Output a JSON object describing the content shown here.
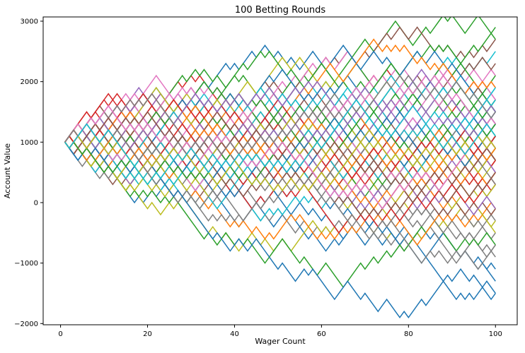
{
  "chart_data": {
    "type": "line",
    "title": "100  Betting Rounds",
    "xlabel": "Wager Count",
    "ylabel": "Account Value",
    "xlim": [
      -4,
      105
    ],
    "ylim": [
      -2020,
      3070
    ],
    "xticks": [
      0,
      20,
      40,
      60,
      80,
      100
    ],
    "yticks": [
      -2000,
      -1000,
      0,
      1000,
      2000,
      3000
    ],
    "grid": false,
    "legend": "none",
    "start_value": 1000,
    "step": 100,
    "x_start": 1,
    "x_end": 100,
    "series_count": 100,
    "series_colors": [
      "#1f77b4",
      "#ff7f0e",
      "#2ca02c",
      "#d62728",
      "#9467bd",
      "#8c564b",
      "#e377c2",
      "#7f7f7f",
      "#bcbd22",
      "#17becf"
    ],
    "series_endpoints": [
      -1400,
      1000,
      2800,
      1600,
      1000,
      2600,
      2000,
      -1000,
      -600,
      2400,
      -1200,
      -200,
      2600,
      1200,
      400,
      2200,
      1800,
      -800,
      600,
      1800,
      -1600,
      400,
      2000,
      600,
      1200,
      1400,
      1600,
      -600,
      800,
      1600,
      1400,
      600,
      -800,
      200,
      1000,
      800,
      1200,
      -400,
      1200,
      1000,
      1200,
      -200,
      1600,
      600,
      800,
      1000,
      400,
      200,
      -400,
      1400,
      1200,
      1800,
      600,
      400,
      1200,
      -200,
      800,
      800,
      200,
      1000,
      1400,
      400,
      1000,
      600,
      -200,
      600,
      1200,
      800,
      800,
      1200,
      800,
      1000,
      1400,
      200,
      400,
      600,
      1000,
      200,
      1000,
      1600,
      -1600,
      600,
      1400,
      800,
      1400,
      400,
      1600,
      -800,
      800,
      1800,
      1000,
      800,
      1200,
      1000,
      1400,
      600,
      1200,
      1400,
      800,
      1000
    ]
  }
}
